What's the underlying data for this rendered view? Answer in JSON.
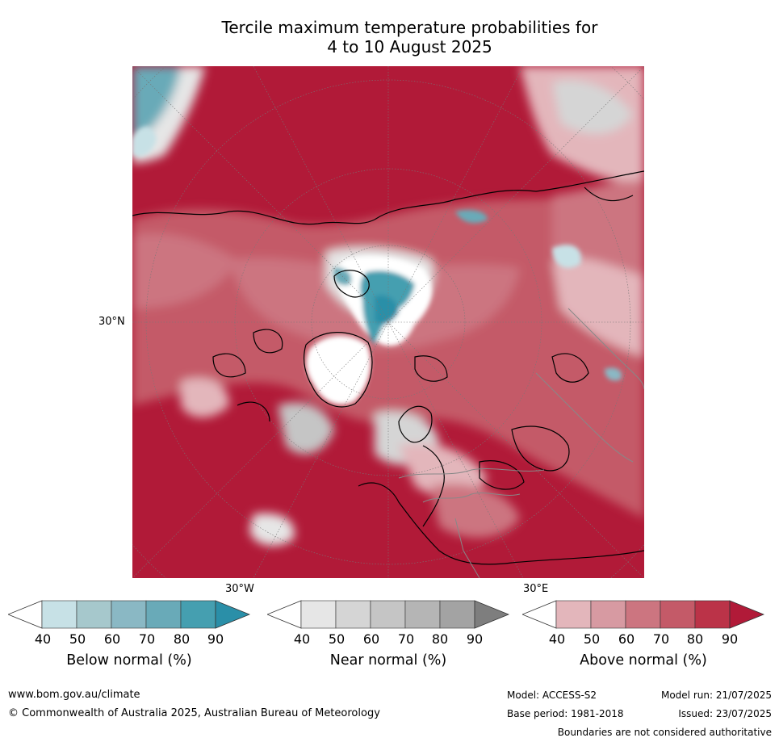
{
  "title_line1": "Tercile maximum temperature probabilities for",
  "title_line2": "4 to 10 August 2025",
  "map": {
    "lat_label": "30°N",
    "lon_label_west": "30°W",
    "lon_label_east": "30°E"
  },
  "colorbars": [
    {
      "label": "Below normal (%)",
      "ticks": [
        "40",
        "50",
        "60",
        "70",
        "80",
        "90"
      ],
      "colors": [
        "#ffffff",
        "#c7e1e6",
        "#a6c8cc",
        "#8ab8c4",
        "#69aab8",
        "#459fb0",
        "#2a8fa8"
      ]
    },
    {
      "label": "Near normal (%)",
      "ticks": [
        "40",
        "50",
        "60",
        "70",
        "80",
        "90"
      ],
      "colors": [
        "#ffffff",
        "#e6e6e6",
        "#d5d5d5",
        "#c5c5c5",
        "#b5b5b5",
        "#a3a3a3",
        "#7e7e7e"
      ]
    },
    {
      "label": "Above normal (%)",
      "ticks": [
        "40",
        "50",
        "60",
        "70",
        "80",
        "90"
      ],
      "colors": [
        "#ffffff",
        "#e3b6bb",
        "#d79aa2",
        "#cc7580",
        "#c45a68",
        "#bb3348",
        "#b11a38"
      ]
    }
  ],
  "footer": {
    "website": "www.bom.gov.au/climate",
    "copyright": "© Commonwealth of Australia 2025, Australian Bureau of Meteorology",
    "model": "Model: ACCESS-S2",
    "base_period": "Base period: 1981-2018",
    "model_run": "Model run: 21/07/2025",
    "issued": "Issued: 23/07/2025",
    "disclaimer": "Boundaries are not considered authoritative"
  }
}
